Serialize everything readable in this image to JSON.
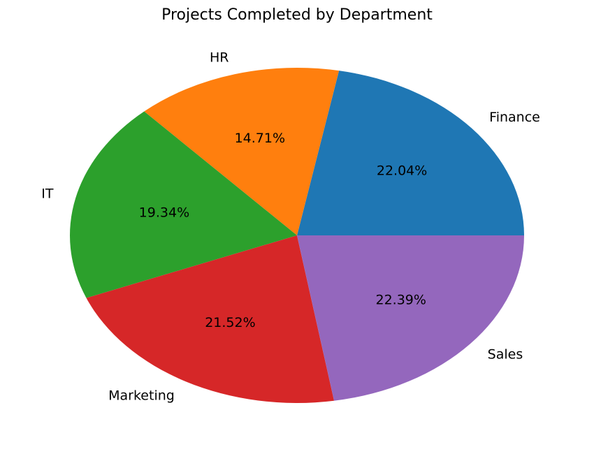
{
  "chart_data": {
    "type": "pie",
    "title": "Projects Completed by Department",
    "categories": [
      "Finance",
      "HR",
      "IT",
      "Marketing",
      "Sales"
    ],
    "values": [
      22.04,
      14.71,
      19.34,
      21.52,
      22.39
    ],
    "percent_labels": [
      "22.04%",
      "14.71%",
      "19.34%",
      "21.52%",
      "22.39%"
    ],
    "colors": [
      "#1f77b4",
      "#ff7f0e",
      "#2ca02c",
      "#d62728",
      "#9467bd"
    ],
    "start_angle_deg": 0,
    "direction": "counterclockwise",
    "legend": "none"
  }
}
